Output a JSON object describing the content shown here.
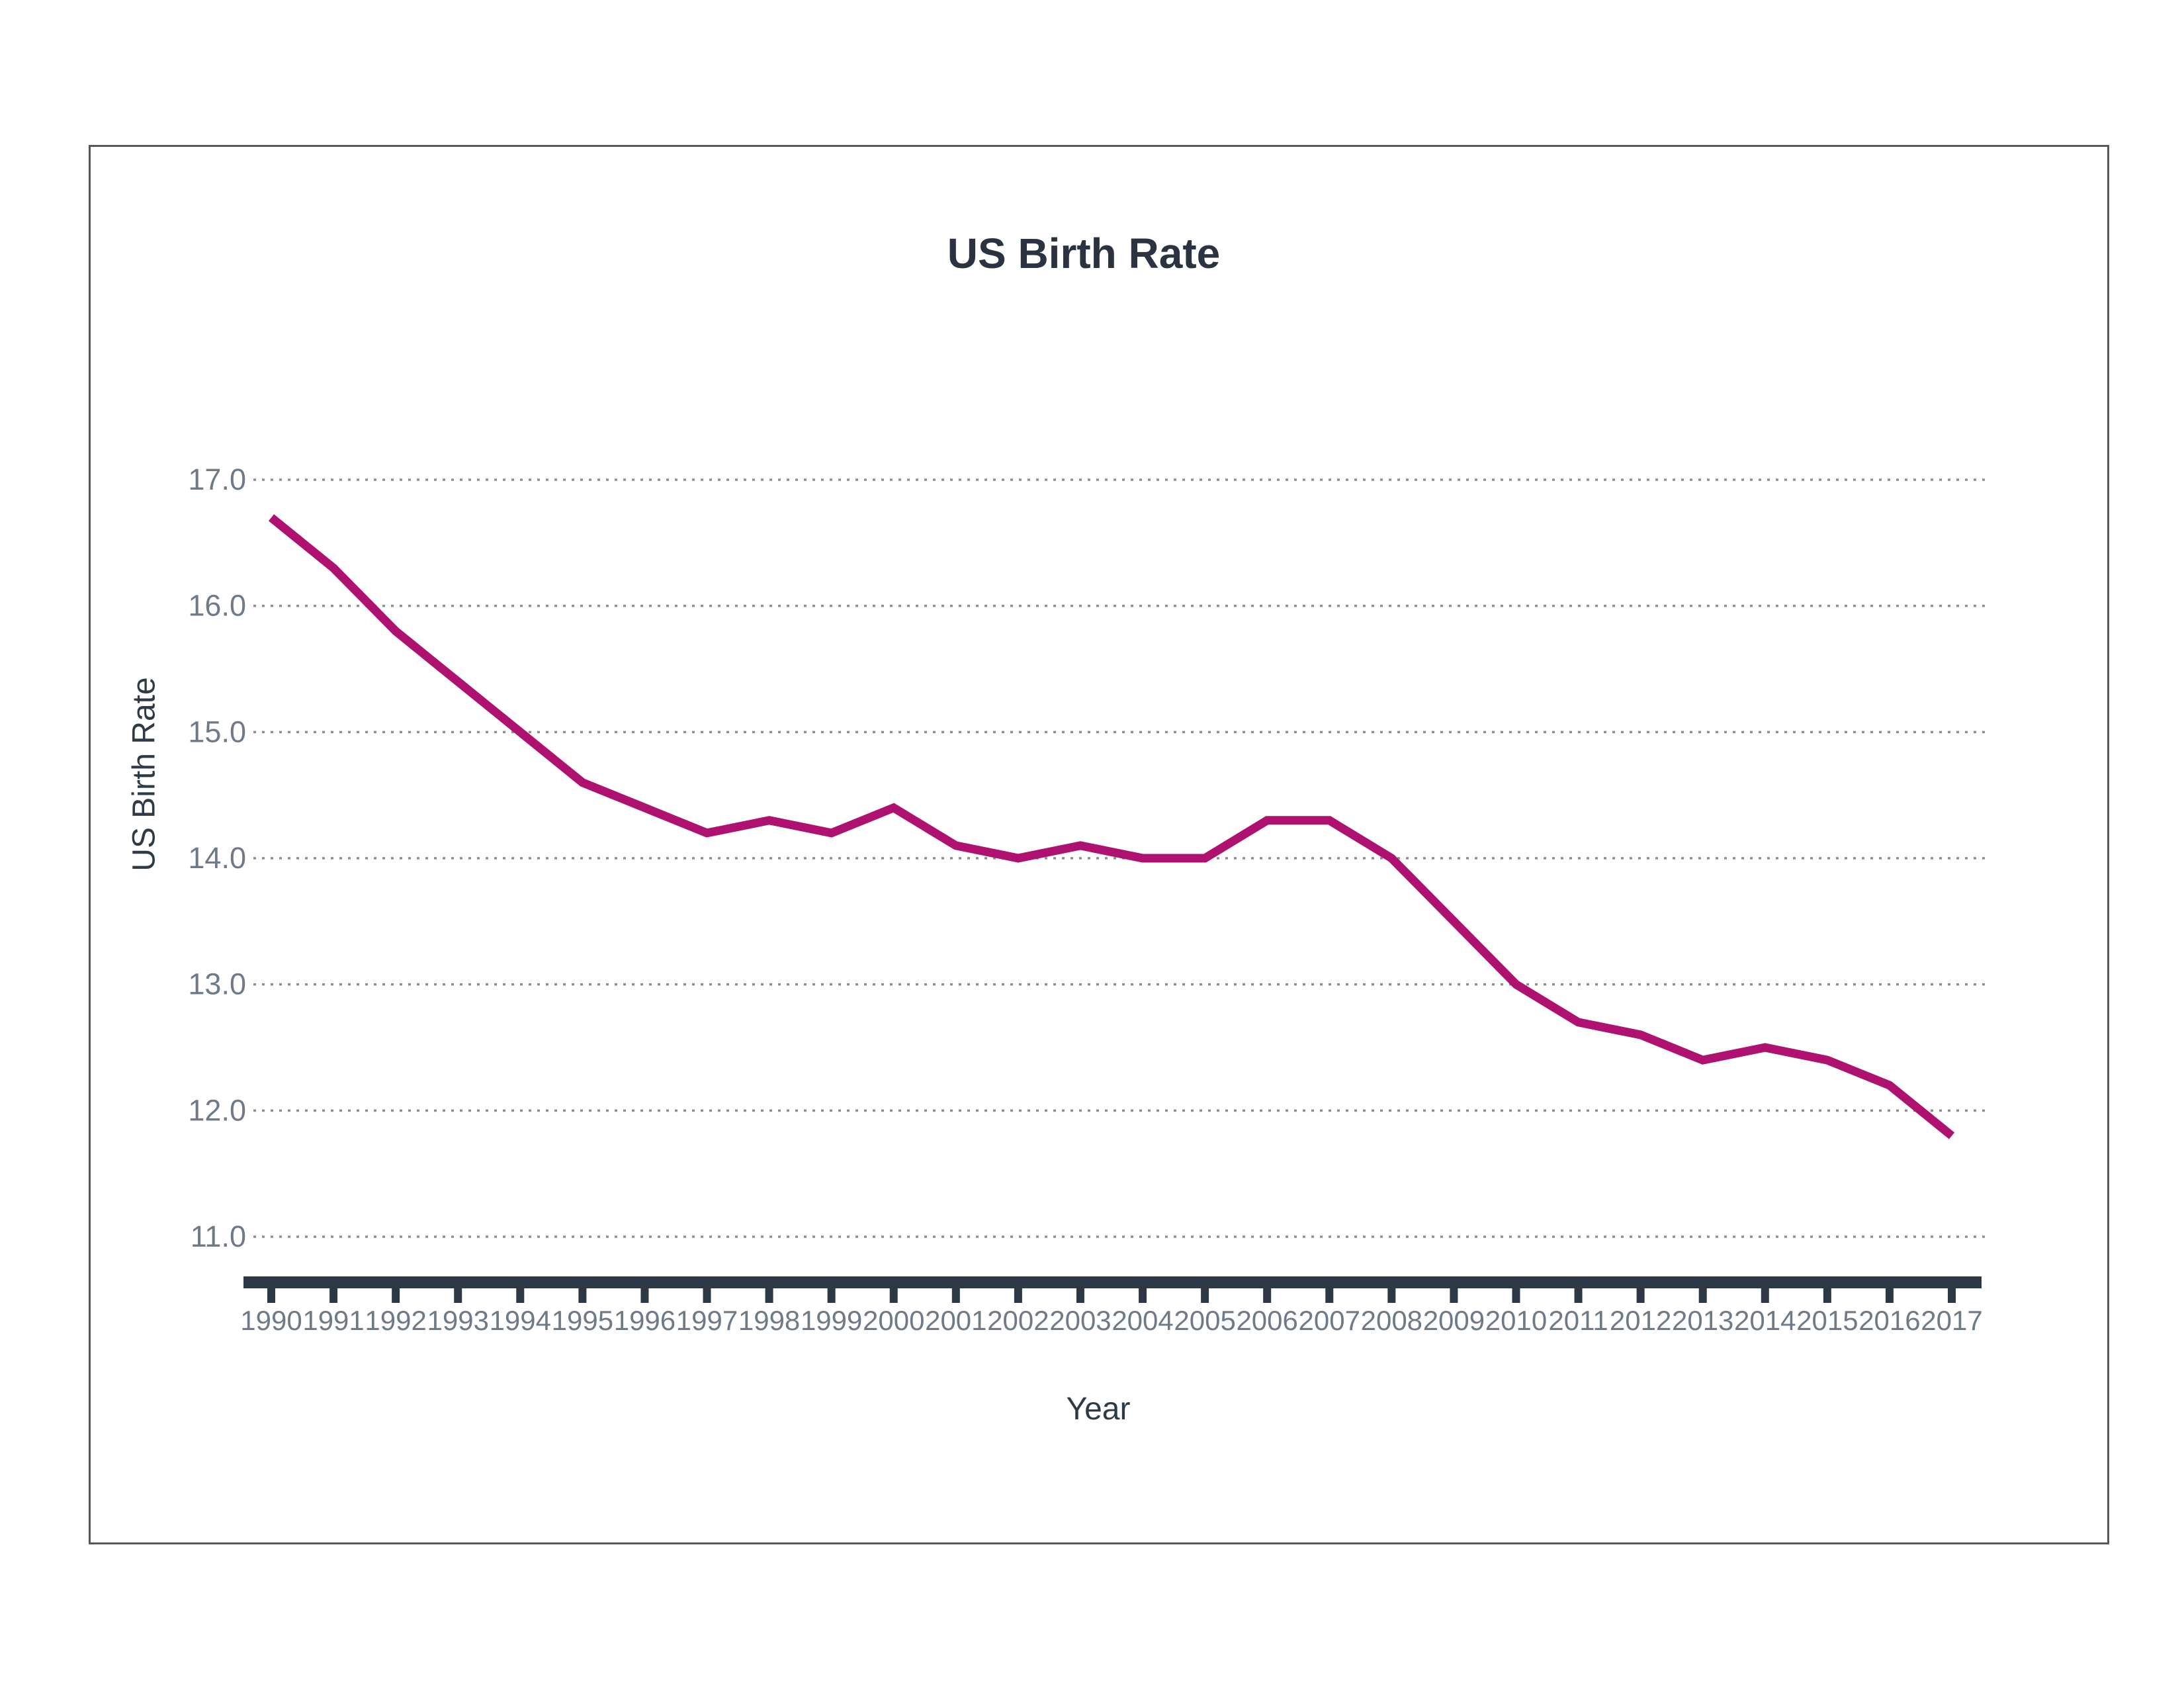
{
  "page": {
    "background_color": "#ffffff",
    "frame_border_color": "#55575c"
  },
  "chart_data": {
    "type": "line",
    "title": "US Birth Rate",
    "xlabel": "Year",
    "ylabel": "US Birth Rate",
    "categories": [
      1990,
      1991,
      1992,
      1993,
      1994,
      1995,
      1996,
      1997,
      1998,
      1999,
      2000,
      2001,
      2002,
      2003,
      2004,
      2005,
      2006,
      2007,
      2008,
      2009,
      2010,
      2011,
      2012,
      2013,
      2014,
      2015,
      2016,
      2017
    ],
    "values": [
      16.7,
      16.3,
      15.8,
      15.4,
      15.0,
      14.6,
      14.4,
      14.2,
      14.3,
      14.2,
      14.4,
      14.1,
      14.0,
      14.1,
      14.0,
      14.0,
      14.3,
      14.3,
      14.0,
      13.5,
      13.0,
      12.7,
      12.6,
      12.4,
      12.5,
      12.4,
      12.2,
      11.8
    ],
    "y_tick_labels": [
      "17.0",
      "16.0",
      "15.0",
      "14.0",
      "13.0",
      "12.0",
      "11.0"
    ],
    "y_tick_values": [
      17.0,
      16.0,
      15.0,
      14.0,
      13.0,
      12.0,
      11.0
    ],
    "ylim": [
      10.7,
      17.3
    ],
    "grid": "horizontal-dotted",
    "legend": "none",
    "line_color": "#af1170",
    "gridline_color": "#8e8e8e",
    "axis_bar_color": "#2c3843",
    "tick_label_color": "#6e7a87",
    "title_color": "#2a333f"
  }
}
